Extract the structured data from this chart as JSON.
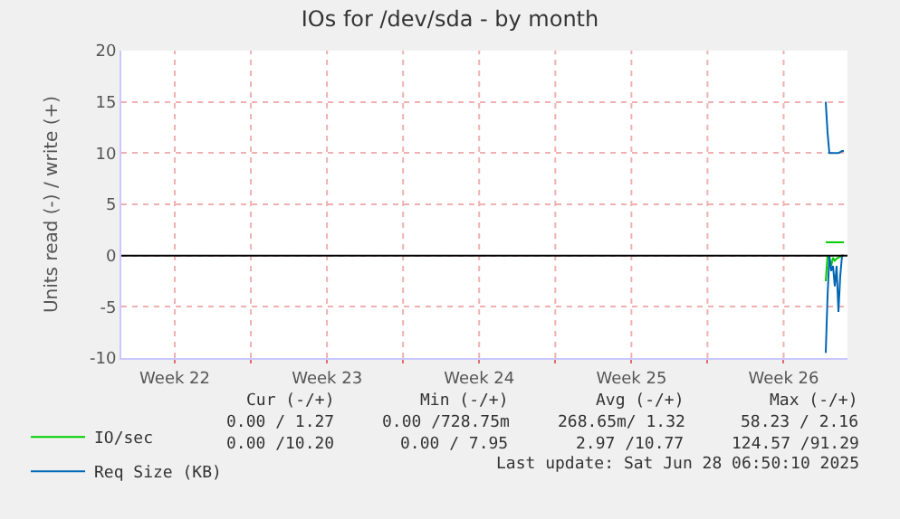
{
  "chart_data": {
    "type": "line",
    "title": "IOs for /dev/sda - by month",
    "ylabel": "Units read (-) / write (+)",
    "x": [
      "2025-06-28T10:30",
      "2025-06-28T12:30",
      "2025-06-28T14:30",
      "2025-06-28T16:30",
      "2025-06-28T18:30",
      "2025-06-28T20:30",
      "2025-06-28T22:30",
      "2025-06-29T00:30",
      "2025-06-29T02:30",
      "2025-06-29T04:30",
      "2025-06-29T06:30"
    ],
    "series": [
      {
        "name": "IO/sec",
        "color": "#00cc00",
        "values": [
          1.3,
          1.3,
          1.3,
          1.3,
          1.3,
          1.3,
          1.3,
          1.3,
          1.3,
          1.3,
          1.3
        ]
      },
      {
        "color": "#00cc00",
        "values": [
          -2.5,
          0,
          -0.3,
          -1,
          -0.2,
          -0.5,
          -0.3,
          -0.2,
          -0.1,
          0,
          0
        ]
      },
      {
        "name": "Req Size (KB)",
        "color": "#0066b3",
        "values": [
          15,
          12,
          10,
          10,
          10,
          10,
          10,
          10,
          10.1,
          10.2,
          10.2
        ]
      },
      {
        "color": "#0066b3",
        "values": [
          -9.5,
          -4,
          0,
          -1.5,
          -1,
          -3,
          -1,
          -5.5,
          -2,
          0,
          0
        ]
      }
    ],
    "xlim": [
      "2025-05-27T01:00",
      "2025-06-29T10:30"
    ],
    "xticks": [
      {
        "value": "2025-05-29T12:00",
        "label": "Week 22"
      },
      {
        "value": "2025-06-05T12:00",
        "label": "Week 23"
      },
      {
        "value": "2025-06-12T12:00",
        "label": "Week 24"
      },
      {
        "value": "2025-06-19T12:00",
        "label": "Week 25"
      },
      {
        "value": "2025-06-26T12:00",
        "label": "Week 26"
      },
      {
        "value": "2025-06-02T00:00",
        "label": null
      },
      {
        "value": "2025-06-09T00:00",
        "label": null
      },
      {
        "value": "2025-06-16T00:00",
        "label": null
      },
      {
        "value": "2025-06-23T00:00",
        "label": null
      }
    ],
    "ylim": [
      -10,
      20
    ],
    "yticks": [
      -10,
      -5,
      0,
      5,
      10,
      15,
      20
    ],
    "ref_lines": [
      {
        "axis": "y",
        "value": 0,
        "color": "#000000"
      }
    ],
    "grid": true,
    "legend": "bottom left",
    "marker": "none",
    "line_style": "solid",
    "annotations": [
      "Cur (-/+)",
      "Min (-/+)",
      "Avg (-/+)",
      "Max (-/+)",
      "0.00 / 1.27",
      "0.00 /728.75m",
      "268.65m/ 1.32",
      "58.23 / 2.16",
      "0.00 /10.20",
      "0.00 / 7.95",
      "2.97 /10.77",
      "124.57 /91.29",
      "Last update: Sat Jun 28 06:50:10 2025"
    ]
  }
}
